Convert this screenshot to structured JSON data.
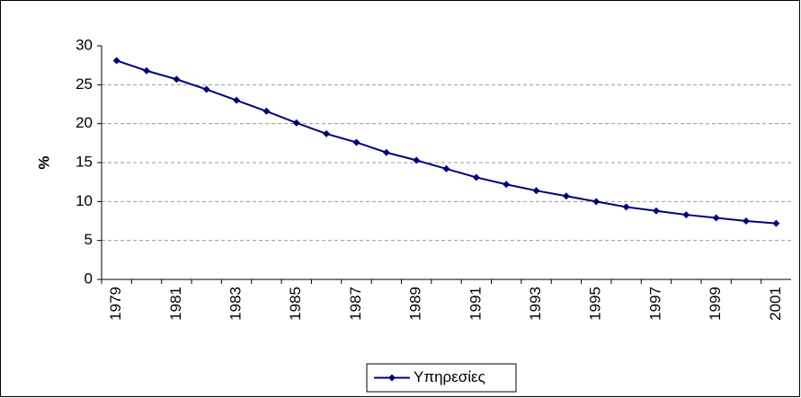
{
  "chart_data": {
    "type": "line",
    "y_label": "%",
    "categories": [
      "1979",
      null,
      "1981",
      null,
      "1983",
      null,
      "1985",
      null,
      "1987",
      null,
      "1989",
      null,
      "1991",
      null,
      "1993",
      null,
      "1995",
      null,
      "1997",
      null,
      "1999",
      null,
      "2001"
    ],
    "series": [
      {
        "name": "Υπηρεσίες",
        "color": "#000080",
        "values": [
          28.1,
          26.8,
          25.7,
          24.4,
          23.0,
          21.6,
          20.1,
          18.7,
          17.6,
          16.3,
          15.3,
          14.2,
          13.1,
          12.2,
          11.4,
          10.7,
          10.0,
          9.3,
          8.8,
          8.3,
          7.9,
          7.5,
          7.2
        ]
      }
    ],
    "ylim": [
      0,
      30
    ],
    "yticks": [
      0,
      5,
      10,
      15,
      20,
      25,
      30
    ],
    "grid": true,
    "legend": "bottom"
  }
}
